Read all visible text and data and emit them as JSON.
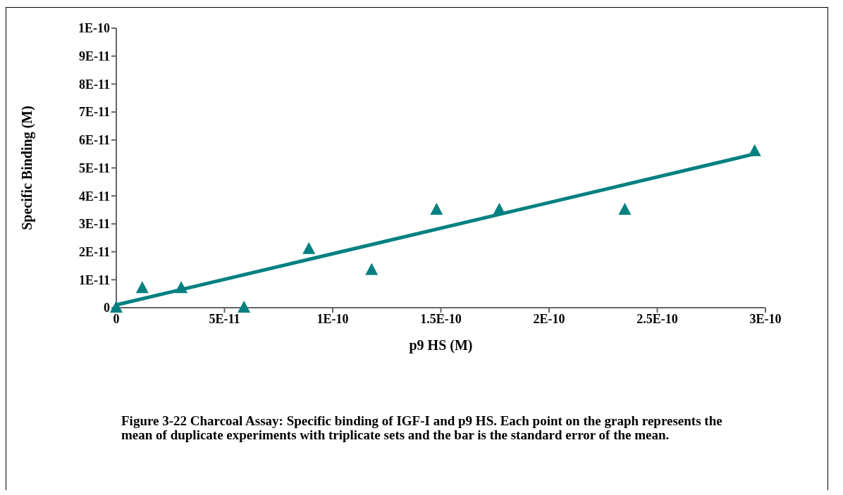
{
  "chart_data": {
    "type": "scatter",
    "xlabel": "p9 HS (M)",
    "ylabel": "Specific Binding (M)",
    "x": [
      0,
      1.2e-11,
      3e-11,
      5.9e-11,
      8.9e-11,
      1.18e-10,
      1.48e-10,
      1.77e-10,
      2.35e-10,
      2.95e-10
    ],
    "series": [
      {
        "type": "scatter",
        "color": "#008080",
        "marker": "triangle",
        "values": [
          0,
          7e-12,
          7e-12,
          0,
          2.1e-11,
          1.35e-11,
          3.5e-11,
          3.5e-11,
          3.5e-11,
          5.6e-11
        ]
      },
      {
        "type": "line",
        "color": "#008080",
        "marker": "none",
        "line_style": "solid",
        "x": [
          0,
          2.95e-10
        ],
        "values": [
          1e-12,
          5.5e-11
        ]
      }
    ],
    "xlim": [
      0,
      3e-10
    ],
    "xticks": [
      0,
      {
        "value": 5e-11,
        "label": "5E-11"
      },
      {
        "value": 1e-10,
        "label": "1E-10"
      },
      {
        "value": 1.5e-10,
        "label": "1.5E-10"
      },
      {
        "value": 2e-10,
        "label": "2E-10"
      },
      {
        "value": 2.5e-10,
        "label": "2.5E-10"
      },
      {
        "value": 3e-10,
        "label": "3E-10"
      }
    ],
    "ylim": [
      0,
      1e-10
    ],
    "yticks": [
      0,
      {
        "value": 1e-11,
        "label": "1E-11"
      },
      {
        "value": 2e-11,
        "label": "2E-11"
      },
      {
        "value": 3e-11,
        "label": "3E-11"
      },
      {
        "value": 4e-11,
        "label": "4E-11"
      },
      {
        "value": 5e-11,
        "label": "5E-11"
      },
      {
        "value": 6e-11,
        "label": "6E-11"
      },
      {
        "value": 7e-11,
        "label": "7E-11"
      },
      {
        "value": 8e-11,
        "label": "8E-11"
      },
      {
        "value": 9e-11,
        "label": "9E-11"
      },
      {
        "value": 1e-10,
        "label": "1E-10"
      }
    ],
    "grid": false,
    "legend": false,
    "annotations": [
      "Figure 3-22   Charcoal Assay: Specific binding of IGF-I and p9 HS. Each point on the graph represents the mean of duplicate experiments with triplicate sets and the bar is the standard error of the mean."
    ]
  }
}
